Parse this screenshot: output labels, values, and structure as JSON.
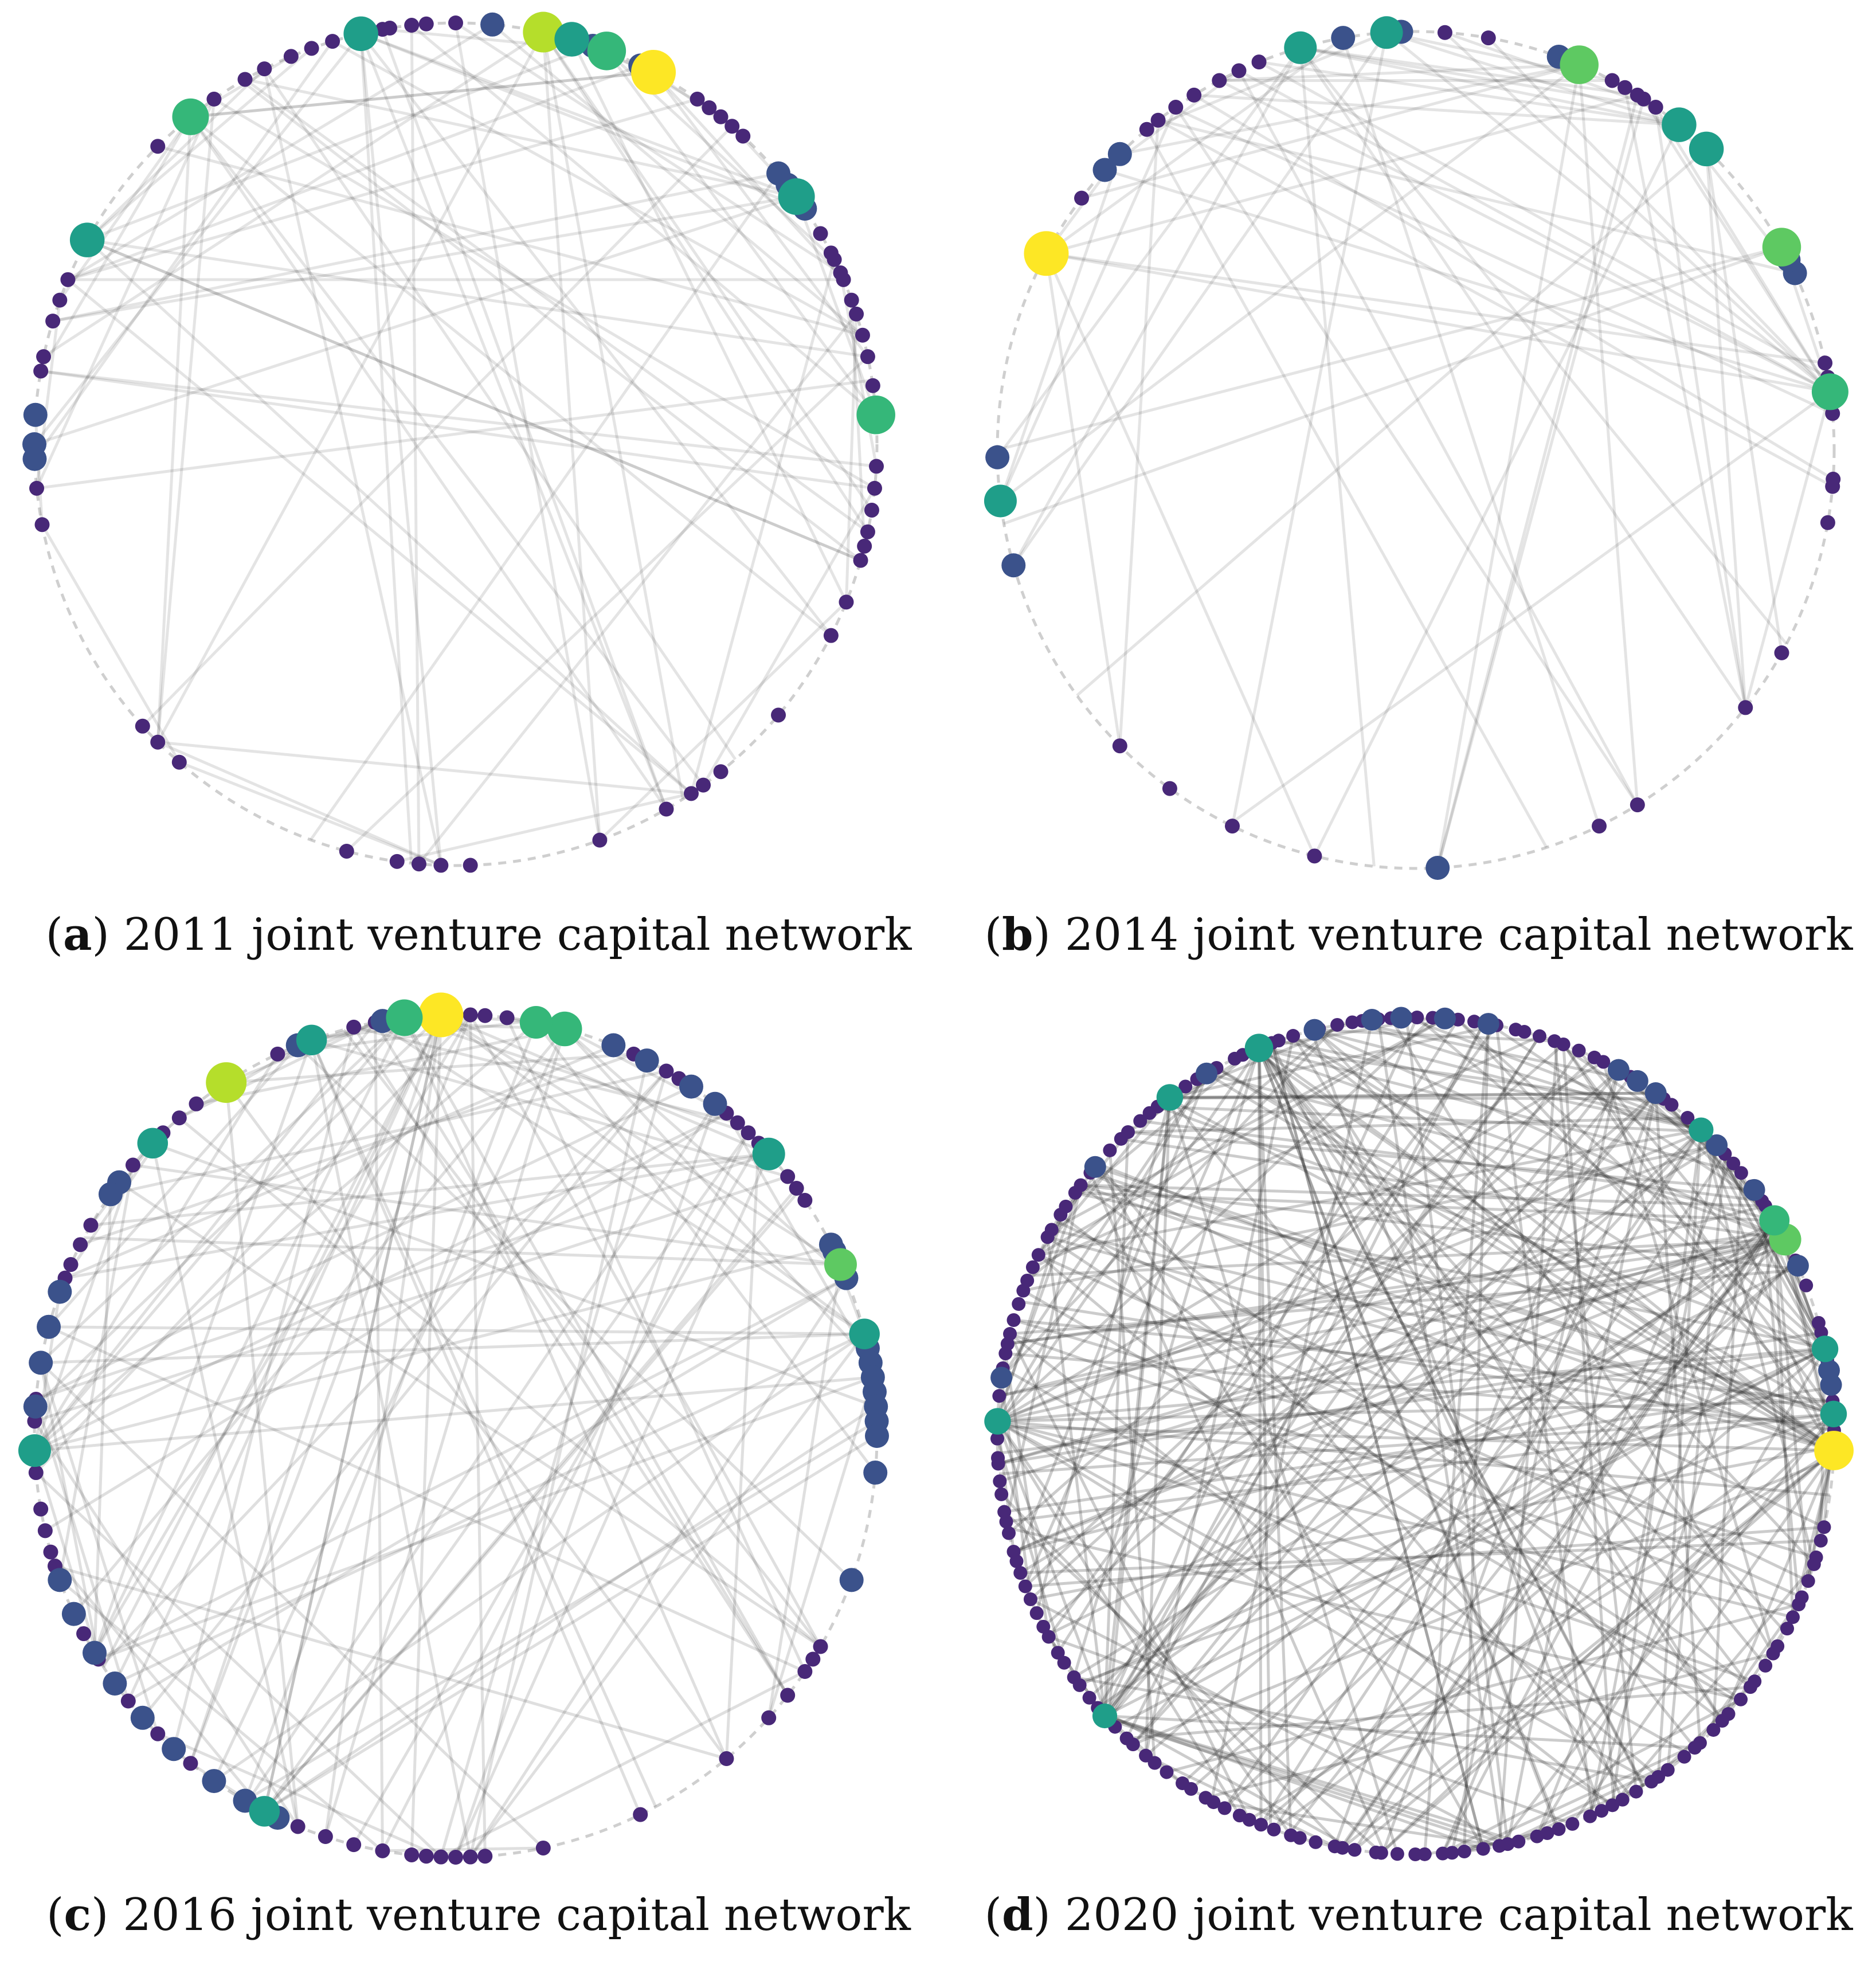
{
  "figure": {
    "panels": [
      {
        "id": "a",
        "caption_label": "a",
        "caption_text": "2011 joint venture capital network",
        "year": 2011,
        "seed": 11,
        "edge_count": 85,
        "edge_opacity": 0.13,
        "hubs": [
          {
            "angle_deg": 62,
            "color": "#fde725",
            "size": 1.0
          },
          {
            "angle_deg": 78,
            "color": "#b5de2b",
            "size": 0.9
          },
          {
            "angle_deg": 74,
            "color": "#1f9e89",
            "size": 0.75
          },
          {
            "angle_deg": 69,
            "color": "#35b779",
            "size": 0.85
          },
          {
            "angle_deg": 129,
            "color": "#35b779",
            "size": 0.8
          },
          {
            "angle_deg": 103,
            "color": "#1f9e89",
            "size": 0.75
          },
          {
            "angle_deg": 151,
            "color": "#1f9e89",
            "size": 0.75
          },
          {
            "angle_deg": 36,
            "color": "#1f9e89",
            "size": 0.8
          },
          {
            "angle_deg": 4,
            "color": "#35b779",
            "size": 0.85
          }
        ],
        "mid_nodes": [
          34,
          64,
          71,
          85,
          180,
          176,
          40,
          38,
          182
        ],
        "small_nodes": [
          90,
          94,
          96,
          99,
          100,
          107,
          110,
          113,
          117,
          120,
          125,
          135,
          157,
          160,
          163,
          168,
          170,
          186,
          191,
          222,
          225,
          229,
          255,
          262,
          265,
          268,
          272,
          290,
          300,
          304,
          306,
          309,
          320,
          333,
          338,
          344,
          346,
          348,
          351,
          354,
          357,
          8,
          12,
          15,
          18,
          20,
          23,
          27,
          30,
          47,
          49,
          51,
          53,
          55,
          24,
          26
        ]
      },
      {
        "id": "b",
        "caption_label": "b",
        "caption_text": "2014 joint venture capital network",
        "year": 2014,
        "seed": 14,
        "edge_count": 65,
        "edge_opacity": 0.13,
        "hubs": [
          {
            "angle_deg": 152,
            "color": "#fde725",
            "size": 1.0
          },
          {
            "angle_deg": 67,
            "color": "#5ec962",
            "size": 0.85
          },
          {
            "angle_deg": 29,
            "color": "#5ec962",
            "size": 0.85
          },
          {
            "angle_deg": 8,
            "color": "#35b779",
            "size": 0.8
          },
          {
            "angle_deg": 51,
            "color": "#1f9e89",
            "size": 0.75
          },
          {
            "angle_deg": 46,
            "color": "#1f9e89",
            "size": 0.75
          },
          {
            "angle_deg": 106,
            "color": "#1f9e89",
            "size": 0.7
          },
          {
            "angle_deg": 94,
            "color": "#1f9e89",
            "size": 0.7
          },
          {
            "angle_deg": 187,
            "color": "#1f9e89",
            "size": 0.7
          }
        ],
        "mid_nodes": [
          138,
          25,
          27,
          70,
          100,
          181,
          196,
          273,
          135,
          92
        ],
        "small_nodes": [
          80,
          86,
          112,
          115,
          118,
          122,
          125,
          128,
          130,
          143,
          225,
          234,
          244,
          256,
          296,
          302,
          322,
          331,
          350,
          355,
          356,
          58,
          60,
          62,
          5,
          8,
          10,
          12,
          55,
          57
        ]
      },
      {
        "id": "c",
        "caption_label": "c",
        "caption_text": "2016 joint venture capital network",
        "year": 2016,
        "seed": 16,
        "edge_count": 130,
        "edge_opacity": 0.15,
        "hubs": [
          {
            "angle_deg": 92,
            "color": "#fde725",
            "size": 1.0
          },
          {
            "angle_deg": 123,
            "color": "#b5de2b",
            "size": 0.9
          },
          {
            "angle_deg": 97,
            "color": "#35b779",
            "size": 0.8
          },
          {
            "angle_deg": 75,
            "color": "#35b779",
            "size": 0.75
          },
          {
            "angle_deg": 79,
            "color": "#35b779",
            "size": 0.7
          },
          {
            "angle_deg": 24,
            "color": "#5ec962",
            "size": 0.7
          },
          {
            "angle_deg": 42,
            "color": "#1f9e89",
            "size": 0.7
          },
          {
            "angle_deg": 182,
            "color": "#1f9e89",
            "size": 0.7
          },
          {
            "angle_deg": 110,
            "color": "#1f9e89",
            "size": 0.65
          },
          {
            "angle_deg": 136,
            "color": "#1f9e89",
            "size": 0.65
          },
          {
            "angle_deg": 14,
            "color": "#1f9e89",
            "size": 0.65
          },
          {
            "angle_deg": 243,
            "color": "#1f9e89",
            "size": 0.65
          }
        ],
        "mid_nodes": [
          27,
          26,
          22,
          12,
          10,
          8,
          6,
          4,
          2,
          0,
          355,
          340,
          200,
          205,
          211,
          216,
          222,
          228,
          235,
          240,
          245,
          143,
          145,
          160,
          165,
          170,
          100,
          112,
          52,
          56,
          63,
          68,
          176
        ],
        "small_nodes": [
          58,
          60,
          65,
          80,
          83,
          86,
          88,
          101,
          104,
          115,
          128,
          131,
          134,
          140,
          150,
          153,
          156,
          158,
          175,
          178,
          185,
          190,
          193,
          196,
          198,
          208,
          212,
          219,
          225,
          231,
          248,
          252,
          256,
          260,
          264,
          266,
          268,
          270,
          272,
          274,
          282,
          296,
          310,
          318,
          322,
          326,
          328,
          330,
          34,
          36,
          38,
          44,
          46,
          48,
          50
        ]
      },
      {
        "id": "d",
        "caption_label": "d",
        "caption_text": "2020 joint venture capital network",
        "year": 2020,
        "seed": 20,
        "edge_count": 290,
        "edge_opacity": 0.24,
        "hubs": [
          {
            "angle_deg": 358,
            "color": "#fde725",
            "size": 0.95
          },
          {
            "angle_deg": 28,
            "color": "#5ec962",
            "size": 0.75
          },
          {
            "angle_deg": 31,
            "color": "#35b779",
            "size": 0.7
          },
          {
            "angle_deg": 112,
            "color": "#1f9e89",
            "size": 0.65
          },
          {
            "angle_deg": 126,
            "color": "#1f9e89",
            "size": 0.6
          },
          {
            "angle_deg": 12,
            "color": "#1f9e89",
            "size": 0.6
          },
          {
            "angle_deg": 3,
            "color": "#1f9e89",
            "size": 0.6
          },
          {
            "angle_deg": 178,
            "color": "#1f9e89",
            "size": 0.6
          },
          {
            "angle_deg": 47,
            "color": "#1f9e89",
            "size": 0.55
          },
          {
            "angle_deg": 222,
            "color": "#1f9e89",
            "size": 0.55
          }
        ],
        "mid_nodes": [
          7,
          9,
          24,
          36,
          44,
          55,
          58,
          61,
          80,
          86,
          92,
          96,
          104,
          120,
          140,
          172
        ],
        "small_nodes_evenly_spaced": 190,
        "small_nodes_skip_ranges": [
          [
            348,
            356
          ],
          [
            16,
            20
          ]
        ]
      }
    ],
    "palette": {
      "background": "#ffffff",
      "edge": "#2b2b2b",
      "ring": "#cfcfcf",
      "small_node": "#482878",
      "mid_node": "#3b528b"
    }
  }
}
